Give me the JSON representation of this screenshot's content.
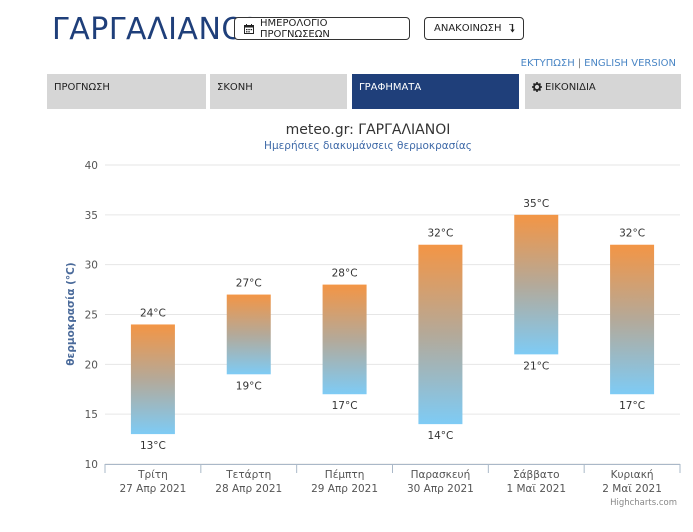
{
  "header": {
    "title": "ΓΑΡΓΑΛΙΑΝΟΙ",
    "calendar_button": "ΗΜΕΡΟΛΟΓΙΟ ΠΡΟΓΝΩΣΕΩΝ",
    "announce_button": "ΑΝΑΚΟΙΝΩΣΗ",
    "print_link": "ΕΚΤΥΠΩΣΗ",
    "link_separator": "|",
    "english_link": "ENGLISH VERSION"
  },
  "tabs": [
    {
      "label": "ΠΡΟΓΝΩΣΗ",
      "active": false
    },
    {
      "label": "ΣΚΟΝΗ",
      "active": false
    },
    {
      "label": "ΓΡΑΦΗΜΑΤΑ",
      "active": true
    },
    {
      "label": "ΕΙΚΟΝΙΔΙΑ",
      "active": false,
      "icon": "gear-icon"
    }
  ],
  "colors": {
    "brand": "#1f3f7a",
    "link": "#4a86c5",
    "bar_top": "#f39545",
    "bar_bottom": "#7ecbf5"
  },
  "chart_data": {
    "type": "bar",
    "subtype": "range",
    "title": "meteo.gr: ΓΑΡΓΑΛΙΑΝΟΙ",
    "subtitle": "Ημερήσιες διακυμάνσεις θερμοκρασίας",
    "ylabel": "θερμοκρασία (°C)",
    "ylim": [
      10,
      40
    ],
    "yticks": [
      10,
      15,
      20,
      25,
      30,
      35,
      40
    ],
    "grid": true,
    "legend": "none",
    "unit": "°C",
    "categories": [
      {
        "day": "Τρίτη",
        "date": "27 Απρ 2021"
      },
      {
        "day": "Τετάρτη",
        "date": "28 Απρ 2021"
      },
      {
        "day": "Πέμπτη",
        "date": "29 Απρ 2021"
      },
      {
        "day": "Παρασκευή",
        "date": "30 Απρ 2021"
      },
      {
        "day": "Σάββατο",
        "date": "1 Μαϊ 2021"
      },
      {
        "day": "Κυριακή",
        "date": "2 Μαϊ 2021"
      }
    ],
    "low": [
      13,
      19,
      17,
      14,
      21,
      17
    ],
    "high": [
      24,
      27,
      28,
      32,
      35,
      32
    ],
    "credits": "Highcharts.com"
  }
}
